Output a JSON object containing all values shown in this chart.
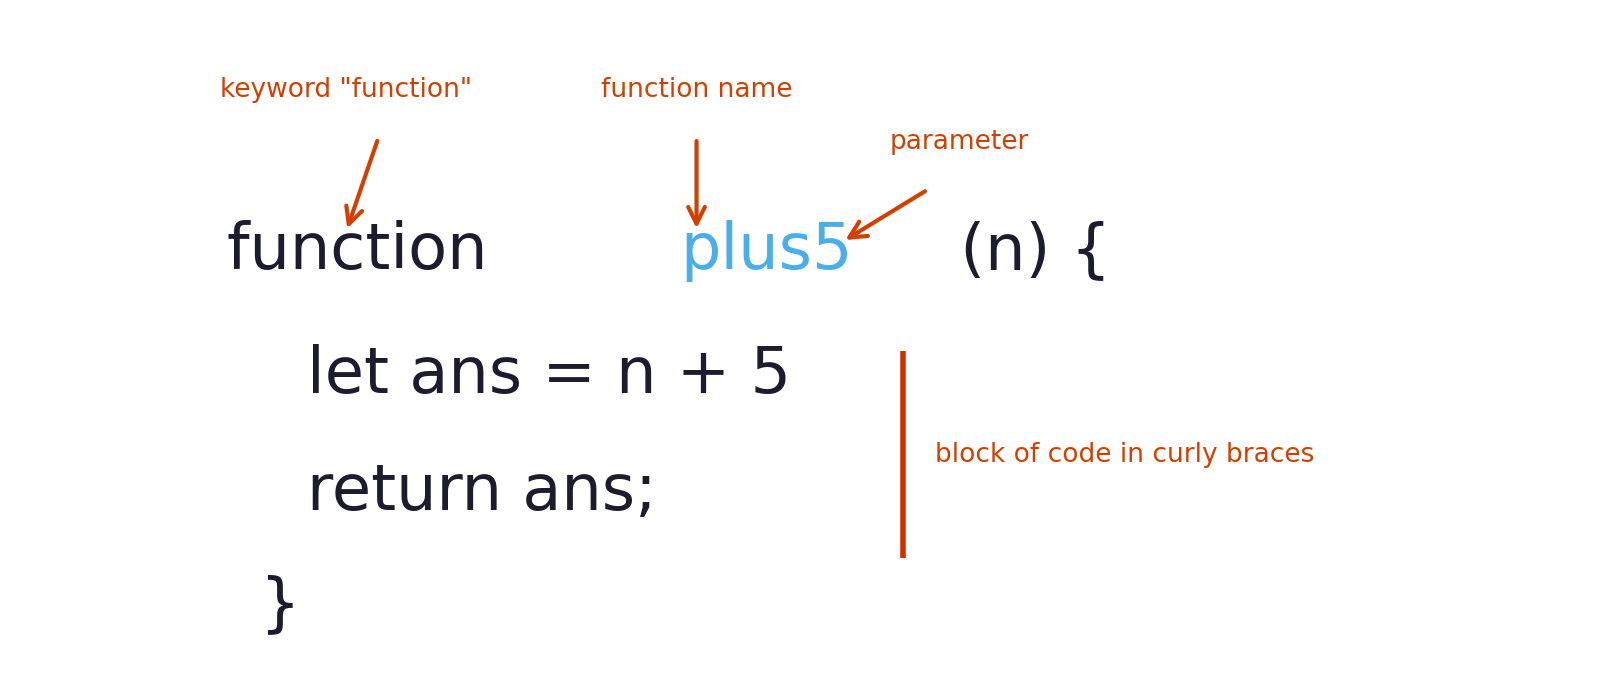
{
  "bg_color": "#ffffff",
  "code_color": "#1c1c2e",
  "highlight_color": "#4aaee8",
  "label_color": "#d43f00",
  "line_color": "#cc3300",
  "keyword_label": "keyword \"function\"",
  "funcname_label": "function name",
  "param_label": "parameter",
  "block_label": "block of code in curly braces",
  "figsize": [
    16.0,
    6.96
  ],
  "dpi": 100,
  "code_fs": 46,
  "label_fs": 19,
  "arrow_lw": 3.0,
  "arrow_ms": 30
}
